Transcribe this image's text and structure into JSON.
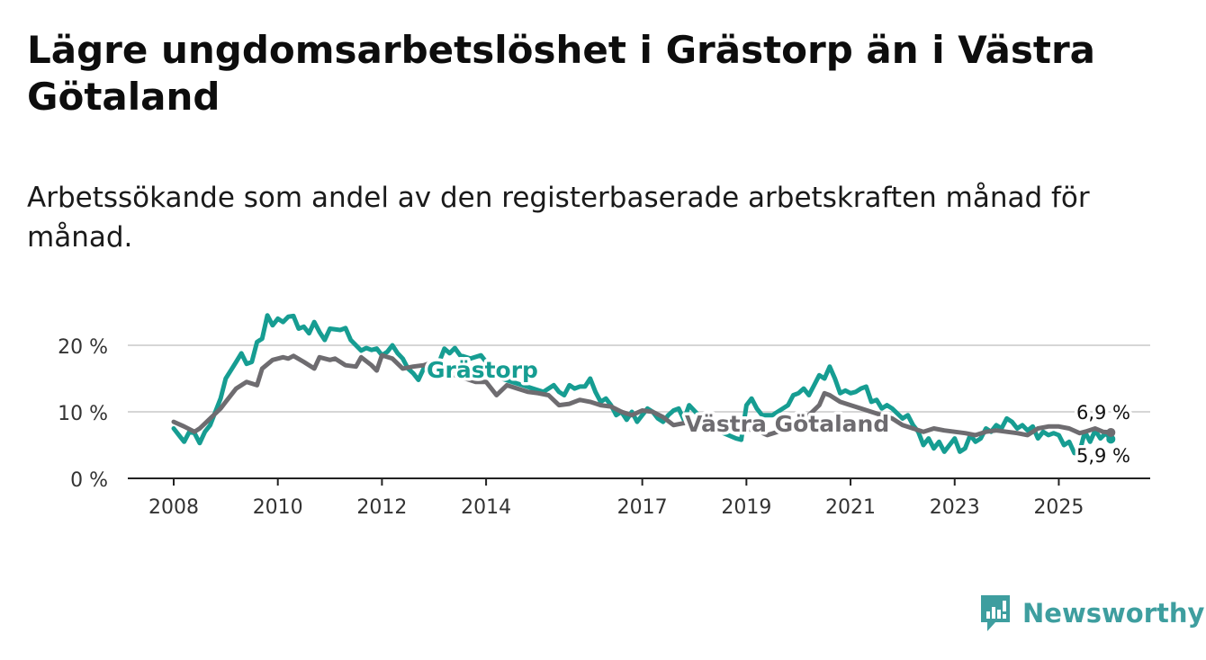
{
  "title": "Lägre ungdomsarbetslöshet i Grästorp än i Västra Götaland",
  "subtitle": "Arbetssökande som andel av den registerbaserade arbetskraften månad för månad.",
  "brand": {
    "name": "Newsworthy",
    "color": "#3e9e9f"
  },
  "chart_data": {
    "type": "line",
    "title": "Lägre ungdomsarbetslöshet i Grästorp än i Västra Götaland",
    "subtitle": "Arbetssökande som andel av den registerbaserade arbetskraften månad för månad.",
    "xlabel": "",
    "ylabel": "",
    "xlim": [
      2008,
      2026.15
    ],
    "ylim": [
      0,
      25
    ],
    "y_ticks": [
      0,
      10,
      20
    ],
    "y_tick_labels": [
      "0 %",
      "10 %",
      "20 %"
    ],
    "x_ticks": [
      2008,
      2010,
      2012,
      2014,
      2017,
      2019,
      2021,
      2023,
      2025
    ],
    "x_tick_labels": [
      "2008",
      "2010",
      "2012",
      "2014",
      "2017",
      "2019",
      "2021",
      "2023",
      "2025"
    ],
    "grid": true,
    "series": [
      {
        "name": "Grästorp",
        "label": "Grästorp",
        "color": "#169d92",
        "end_label": "5,9 %",
        "points": [
          [
            2008.0,
            7.5
          ],
          [
            2008.1,
            6.5
          ],
          [
            2008.2,
            5.5
          ],
          [
            2008.3,
            7.0
          ],
          [
            2008.4,
            6.8
          ],
          [
            2008.5,
            5.3
          ],
          [
            2008.6,
            7.0
          ],
          [
            2008.7,
            8.0
          ],
          [
            2008.8,
            10.0
          ],
          [
            2008.9,
            12.0
          ],
          [
            2009.0,
            15.0
          ],
          [
            2009.2,
            17.5
          ],
          [
            2009.3,
            18.8
          ],
          [
            2009.4,
            17.2
          ],
          [
            2009.5,
            17.5
          ],
          [
            2009.6,
            20.5
          ],
          [
            2009.7,
            21.0
          ],
          [
            2009.8,
            24.5
          ],
          [
            2009.9,
            23.0
          ],
          [
            2010.0,
            24.0
          ],
          [
            2010.1,
            23.5
          ],
          [
            2010.2,
            24.3
          ],
          [
            2010.3,
            24.4
          ],
          [
            2010.4,
            22.5
          ],
          [
            2010.5,
            22.8
          ],
          [
            2010.6,
            21.8
          ],
          [
            2010.7,
            23.5
          ],
          [
            2010.8,
            22.0
          ],
          [
            2010.9,
            20.8
          ],
          [
            2011.0,
            22.5
          ],
          [
            2011.2,
            22.3
          ],
          [
            2011.3,
            22.6
          ],
          [
            2011.4,
            20.8
          ],
          [
            2011.5,
            20.0
          ],
          [
            2011.6,
            19.2
          ],
          [
            2011.7,
            19.6
          ],
          [
            2011.8,
            19.3
          ],
          [
            2011.9,
            19.5
          ],
          [
            2012.0,
            18.5
          ],
          [
            2012.1,
            19.0
          ],
          [
            2012.2,
            20.0
          ],
          [
            2012.3,
            18.8
          ],
          [
            2012.4,
            18.0
          ],
          [
            2012.5,
            16.5
          ],
          [
            2012.6,
            15.8
          ],
          [
            2012.7,
            14.8
          ],
          [
            2012.8,
            16.5
          ],
          [
            2012.9,
            17.2
          ],
          [
            2013.0,
            16.8
          ],
          [
            2013.1,
            17.5
          ],
          [
            2013.2,
            19.5
          ],
          [
            2013.3,
            18.8
          ],
          [
            2013.4,
            19.6
          ],
          [
            2013.5,
            18.5
          ],
          [
            2013.7,
            18.0
          ],
          [
            2013.9,
            18.5
          ],
          [
            2014.1,
            16.5
          ],
          [
            2014.3,
            15.0
          ],
          [
            2014.5,
            14.5
          ],
          [
            2014.7,
            14.0
          ],
          [
            2014.9,
            13.5
          ],
          [
            2015.1,
            13.0
          ],
          [
            2015.2,
            13.5
          ],
          [
            2015.3,
            14.0
          ],
          [
            2015.4,
            13.0
          ],
          [
            2015.5,
            12.5
          ],
          [
            2015.6,
            14.0
          ],
          [
            2015.7,
            13.5
          ],
          [
            2015.8,
            13.8
          ],
          [
            2015.9,
            13.8
          ],
          [
            2016.0,
            15.0
          ],
          [
            2016.1,
            13.0
          ],
          [
            2016.2,
            11.5
          ],
          [
            2016.3,
            12.0
          ],
          [
            2016.4,
            11.0
          ],
          [
            2016.5,
            9.5
          ],
          [
            2016.6,
            10.0
          ],
          [
            2016.7,
            8.8
          ],
          [
            2016.8,
            10.0
          ],
          [
            2016.9,
            8.5
          ],
          [
            2017.0,
            9.5
          ],
          [
            2017.1,
            10.5
          ],
          [
            2017.2,
            10.0
          ],
          [
            2017.3,
            9.0
          ],
          [
            2017.4,
            8.5
          ],
          [
            2017.5,
            9.5
          ],
          [
            2017.6,
            10.2
          ],
          [
            2017.7,
            10.5
          ],
          [
            2017.8,
            8.8
          ],
          [
            2017.9,
            11.0
          ],
          [
            2018.2,
            8.5
          ],
          [
            2018.5,
            7.0
          ],
          [
            2018.8,
            6.0
          ],
          [
            2018.9,
            5.8
          ],
          [
            2019.0,
            11.0
          ],
          [
            2019.1,
            12.0
          ],
          [
            2019.2,
            10.5
          ],
          [
            2019.3,
            9.5
          ],
          [
            2019.5,
            9.5
          ],
          [
            2019.6,
            10.0
          ],
          [
            2019.7,
            10.5
          ],
          [
            2019.8,
            11.0
          ],
          [
            2019.9,
            12.5
          ],
          [
            2020.0,
            12.8
          ],
          [
            2020.1,
            13.5
          ],
          [
            2020.2,
            12.5
          ],
          [
            2020.3,
            14.0
          ],
          [
            2020.4,
            15.5
          ],
          [
            2020.5,
            15.0
          ],
          [
            2020.6,
            16.8
          ],
          [
            2020.7,
            15.0
          ],
          [
            2020.8,
            12.8
          ],
          [
            2020.9,
            13.2
          ],
          [
            2021.0,
            12.8
          ],
          [
            2021.1,
            13.0
          ],
          [
            2021.2,
            13.5
          ],
          [
            2021.3,
            13.8
          ],
          [
            2021.4,
            11.5
          ],
          [
            2021.5,
            11.8
          ],
          [
            2021.6,
            10.5
          ],
          [
            2021.7,
            11.0
          ],
          [
            2021.8,
            10.5
          ],
          [
            2022.0,
            9.0
          ],
          [
            2022.1,
            9.5
          ],
          [
            2022.2,
            8.0
          ],
          [
            2022.3,
            7.0
          ],
          [
            2022.4,
            5.0
          ],
          [
            2022.5,
            6.0
          ],
          [
            2022.6,
            4.5
          ],
          [
            2022.7,
            5.5
          ],
          [
            2022.8,
            4.0
          ],
          [
            2022.9,
            5.0
          ],
          [
            2023.0,
            6.0
          ],
          [
            2023.1,
            4.0
          ],
          [
            2023.2,
            4.5
          ],
          [
            2023.3,
            6.5
          ],
          [
            2023.4,
            5.5
          ],
          [
            2023.5,
            6.0
          ],
          [
            2023.6,
            7.5
          ],
          [
            2023.7,
            7.0
          ],
          [
            2023.8,
            8.0
          ],
          [
            2023.9,
            7.5
          ],
          [
            2024.0,
            9.0
          ],
          [
            2024.1,
            8.5
          ],
          [
            2024.2,
            7.5
          ],
          [
            2024.3,
            8.0
          ],
          [
            2024.4,
            7.2
          ],
          [
            2024.5,
            7.8
          ],
          [
            2024.6,
            6.0
          ],
          [
            2024.7,
            7.0
          ],
          [
            2024.8,
            6.5
          ],
          [
            2024.9,
            6.8
          ],
          [
            2025.0,
            6.5
          ],
          [
            2025.1,
            5.0
          ],
          [
            2025.2,
            5.5
          ],
          [
            2025.3,
            3.8
          ],
          [
            2025.4,
            4.0
          ],
          [
            2025.5,
            7.0
          ],
          [
            2025.6,
            5.5
          ],
          [
            2025.7,
            7.2
          ],
          [
            2025.8,
            6.0
          ],
          [
            2025.9,
            6.8
          ],
          [
            2026.0,
            5.9
          ]
        ]
      },
      {
        "name": "Västra Götaland",
        "label": "Västra Götaland",
        "color": "#6e6c70",
        "end_label": "6,9 %",
        "points": [
          [
            2008.0,
            8.5
          ],
          [
            2008.2,
            7.8
          ],
          [
            2008.4,
            7.0
          ],
          [
            2008.5,
            7.5
          ],
          [
            2008.7,
            9.0
          ],
          [
            2008.9,
            10.5
          ],
          [
            2009.0,
            11.5
          ],
          [
            2009.2,
            13.5
          ],
          [
            2009.4,
            14.5
          ],
          [
            2009.6,
            14.0
          ],
          [
            2009.7,
            16.5
          ],
          [
            2009.9,
            17.8
          ],
          [
            2010.1,
            18.2
          ],
          [
            2010.2,
            18.0
          ],
          [
            2010.3,
            18.4
          ],
          [
            2010.5,
            17.5
          ],
          [
            2010.7,
            16.5
          ],
          [
            2010.8,
            18.2
          ],
          [
            2011.0,
            17.8
          ],
          [
            2011.1,
            18.0
          ],
          [
            2011.3,
            17.0
          ],
          [
            2011.5,
            16.8
          ],
          [
            2011.6,
            18.2
          ],
          [
            2011.8,
            17.0
          ],
          [
            2011.9,
            16.2
          ],
          [
            2012.0,
            18.5
          ],
          [
            2012.2,
            18.0
          ],
          [
            2012.4,
            16.5
          ],
          [
            2012.6,
            16.8
          ],
          [
            2012.8,
            17.0
          ],
          [
            2013.0,
            17.5
          ],
          [
            2013.2,
            16.5
          ],
          [
            2013.4,
            15.5
          ],
          [
            2013.6,
            15.0
          ],
          [
            2013.8,
            14.5
          ],
          [
            2014.0,
            14.5
          ],
          [
            2014.2,
            12.5
          ],
          [
            2014.4,
            14.0
          ],
          [
            2014.6,
            13.5
          ],
          [
            2014.8,
            13.0
          ],
          [
            2015.0,
            12.8
          ],
          [
            2015.2,
            12.5
          ],
          [
            2015.4,
            11.0
          ],
          [
            2015.6,
            11.2
          ],
          [
            2015.8,
            11.8
          ],
          [
            2016.0,
            11.5
          ],
          [
            2016.2,
            11.0
          ],
          [
            2016.4,
            10.8
          ],
          [
            2016.6,
            10.0
          ],
          [
            2016.8,
            9.5
          ],
          [
            2017.0,
            10.2
          ],
          [
            2017.2,
            10.0
          ],
          [
            2017.4,
            9.2
          ],
          [
            2017.6,
            8.0
          ],
          [
            2017.8,
            8.3
          ],
          [
            2018.0,
            8.5
          ],
          [
            2018.3,
            8.2
          ],
          [
            2018.6,
            7.8
          ],
          [
            2018.9,
            7.5
          ],
          [
            2019.2,
            7.2
          ],
          [
            2019.4,
            6.5
          ],
          [
            2019.6,
            7.0
          ],
          [
            2019.8,
            7.5
          ],
          [
            2020.0,
            8.5
          ],
          [
            2020.2,
            9.5
          ],
          [
            2020.4,
            11.0
          ],
          [
            2020.5,
            12.8
          ],
          [
            2020.6,
            12.5
          ],
          [
            2020.8,
            11.5
          ],
          [
            2021.0,
            11.0
          ],
          [
            2021.2,
            10.5
          ],
          [
            2021.4,
            10.0
          ],
          [
            2021.6,
            9.5
          ],
          [
            2021.8,
            9.0
          ],
          [
            2022.0,
            8.0
          ],
          [
            2022.2,
            7.5
          ],
          [
            2022.4,
            7.0
          ],
          [
            2022.6,
            7.5
          ],
          [
            2022.8,
            7.2
          ],
          [
            2023.0,
            7.0
          ],
          [
            2023.2,
            6.8
          ],
          [
            2023.4,
            6.5
          ],
          [
            2023.6,
            7.0
          ],
          [
            2023.8,
            7.2
          ],
          [
            2024.0,
            7.0
          ],
          [
            2024.2,
            6.8
          ],
          [
            2024.4,
            6.5
          ],
          [
            2024.6,
            7.5
          ],
          [
            2024.8,
            7.8
          ],
          [
            2025.0,
            7.8
          ],
          [
            2025.2,
            7.5
          ],
          [
            2025.4,
            6.8
          ],
          [
            2025.5,
            7.0
          ],
          [
            2025.7,
            7.5
          ],
          [
            2025.85,
            7.0
          ],
          [
            2026.0,
            6.9
          ]
        ]
      }
    ]
  }
}
